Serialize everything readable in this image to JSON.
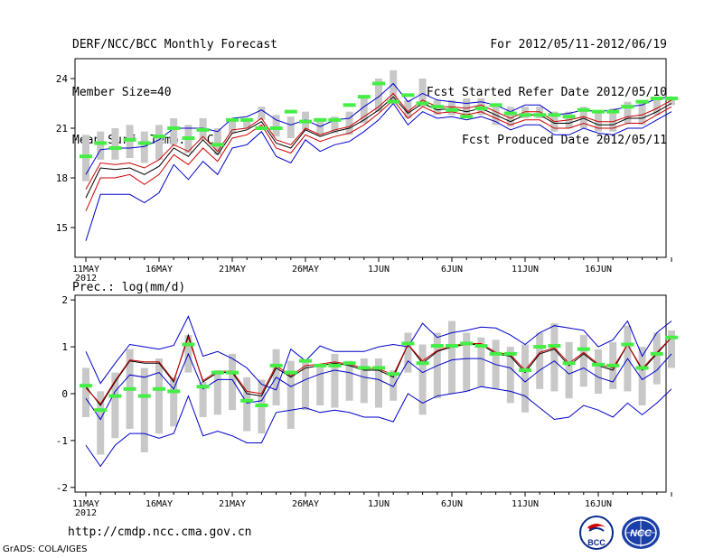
{
  "header": {
    "title": "DERF/NCC/BCC Monthly Forecast",
    "member_size": "Member Size=40",
    "variable1": "Mean Surf. Temp.: °C",
    "period": "For 2012/05/11-2012/06/19",
    "start": "Fcst Started Refer Date 2012/05/10",
    "produced": "Fcst Produced Date 2012/05/11"
  },
  "footer": {
    "url": "http://cmdp.ncc.cma.gov.cn",
    "credit": "GrADS: COLA/IGES",
    "logo1_text": "BCC",
    "logo2_text": "NCC"
  },
  "colors": {
    "median": "#000000",
    "mean": "#cc0000",
    "envelope": "#0000cc",
    "observed": "#44ee44",
    "spread": "#c8c8c8"
  },
  "chart_data": [
    {
      "type": "line",
      "title": "Mean Surf. Temp.: °C",
      "x_ticks": [
        "11MAY",
        "16MAY",
        "21MAY",
        "26MAY",
        "1JUN",
        "6JUN",
        "11JUN",
        "16JUN"
      ],
      "year_label": "2012",
      "ylim": [
        13.2,
        25.2
      ],
      "y_ticks": [
        "15",
        "18",
        "21",
        "24"
      ],
      "y_tick_values": [
        15,
        18,
        21,
        24
      ],
      "series": [
        {
          "name": "max",
          "values": [
            14.2,
            17.0,
            17.0,
            17.0,
            16.5,
            17.1,
            18.8,
            17.9,
            19.0,
            18.2,
            19.8,
            20.0,
            20.8,
            19.3,
            18.9,
            20.3,
            19.6,
            20.0,
            20.2,
            20.8,
            21.5,
            22.5,
            21.2,
            22.0,
            21.6,
            21.7,
            21.5,
            21.7,
            21.4,
            20.9,
            21.2,
            21.2,
            20.6,
            20.6,
            21.0,
            20.7,
            20.6,
            21.0,
            21.0,
            21.5,
            22.0
          ]
        },
        {
          "name": "low",
          "values": [
            16.0,
            18.0,
            18.0,
            18.2,
            17.6,
            18.2,
            19.4,
            18.8,
            19.8,
            19.0,
            20.4,
            20.6,
            21.2,
            19.8,
            19.5,
            20.6,
            20.2,
            20.5,
            20.7,
            21.2,
            21.9,
            22.7,
            21.6,
            22.3,
            21.9,
            22.0,
            21.8,
            22.0,
            21.6,
            21.2,
            21.5,
            21.5,
            21.0,
            21.0,
            21.3,
            21.0,
            21.0,
            21.3,
            21.3,
            21.8,
            22.3
          ]
        },
        {
          "name": "median",
          "values": [
            16.8,
            18.6,
            18.5,
            18.6,
            18.2,
            18.7,
            19.8,
            19.3,
            20.3,
            19.4,
            20.7,
            20.9,
            21.4,
            20.1,
            19.8,
            20.9,
            20.5,
            20.8,
            21.0,
            21.5,
            22.1,
            22.9,
            21.9,
            22.5,
            22.1,
            22.2,
            22.0,
            22.2,
            21.8,
            21.4,
            21.8,
            21.8,
            21.3,
            21.3,
            21.6,
            21.2,
            21.2,
            21.6,
            21.6,
            22.0,
            22.5
          ]
        },
        {
          "name": "mean",
          "values": [
            17.3,
            18.9,
            18.8,
            18.9,
            18.6,
            19.1,
            20.0,
            19.6,
            20.5,
            19.6,
            20.9,
            21.0,
            21.6,
            20.3,
            20.0,
            21.0,
            20.6,
            20.9,
            21.1,
            21.7,
            22.3,
            23.1,
            22.0,
            22.7,
            22.3,
            22.3,
            22.2,
            22.4,
            22.0,
            21.6,
            22.0,
            22.0,
            21.4,
            21.5,
            21.7,
            21.4,
            21.4,
            21.7,
            21.8,
            22.2,
            22.7
          ]
        },
        {
          "name": "min",
          "values": [
            18.2,
            19.7,
            19.8,
            19.8,
            19.9,
            20.3,
            21.0,
            21.0,
            21.0,
            20.8,
            21.6,
            21.7,
            22.1,
            21.5,
            21.2,
            21.5,
            21.1,
            21.5,
            21.6,
            22.3,
            22.9,
            23.7,
            22.6,
            23.1,
            22.7,
            22.6,
            22.5,
            22.6,
            22.4,
            22.0,
            22.4,
            22.4,
            21.8,
            21.9,
            22.1,
            22.0,
            22.1,
            22.3,
            22.4,
            22.8,
            22.9
          ]
        }
      ],
      "observed": [
        19.3,
        20.1,
        19.8,
        20.3,
        20.1,
        20.5,
        21.0,
        20.4,
        20.9,
        20.0,
        21.5,
        21.5,
        21.0,
        21.0,
        22.0,
        21.4,
        21.5,
        21.5,
        22.4,
        22.9,
        23.7,
        22.6,
        23.0,
        22.5,
        22.3,
        22.1,
        21.7,
        22.2,
        22.4,
        21.9,
        21.8,
        21.8,
        21.8,
        21.7,
        22.1,
        22.0,
        22.0,
        22.3,
        22.6,
        22.8,
        22.8
      ],
      "spread": [
        [
          17.8,
          20.6
        ],
        [
          19.1,
          20.8
        ],
        [
          19.1,
          21.0
        ],
        [
          19.2,
          21.2
        ],
        [
          18.9,
          20.8
        ],
        [
          19.1,
          21.2
        ],
        [
          20.0,
          21.6
        ],
        [
          19.5,
          21.2
        ],
        [
          20.3,
          21.6
        ],
        [
          19.4,
          21.0
        ],
        [
          20.7,
          21.5
        ],
        [
          21.0,
          21.5
        ],
        [
          21.5,
          22.3
        ],
        [
          20.5,
          21.8
        ],
        [
          20.4,
          21.7
        ],
        [
          20.9,
          22.0
        ],
        [
          20.6,
          21.6
        ],
        [
          20.7,
          21.7
        ],
        [
          20.6,
          22.0
        ],
        [
          21.3,
          23.0
        ],
        [
          22.0,
          24.0
        ],
        [
          22.7,
          24.5
        ],
        [
          21.6,
          22.7
        ],
        [
          22.3,
          24.0
        ],
        [
          21.8,
          22.7
        ],
        [
          21.8,
          22.7
        ],
        [
          21.7,
          22.8
        ],
        [
          21.8,
          22.8
        ],
        [
          21.2,
          22.3
        ],
        [
          21.1,
          22.3
        ],
        [
          21.6,
          22.3
        ],
        [
          21.6,
          22.3
        ],
        [
          20.8,
          22.0
        ],
        [
          21.0,
          22.0
        ],
        [
          21.0,
          22.3
        ],
        [
          20.8,
          22.1
        ],
        [
          20.8,
          22.2
        ],
        [
          21.3,
          22.6
        ],
        [
          21.2,
          22.6
        ],
        [
          21.8,
          22.8
        ],
        [
          22.4,
          22.8
        ]
      ]
    },
    {
      "type": "line",
      "title": "Prec.: log(mm/d)",
      "x_ticks": [
        "11MAY",
        "16MAY",
        "21MAY",
        "26MAY",
        "1JUN",
        "6JUN",
        "11JUN",
        "16JUN"
      ],
      "year_label": "2012",
      "ylim": [
        -2.1,
        2.1
      ],
      "y_ticks": [
        "-2",
        "-1",
        "0",
        "1",
        "2"
      ],
      "y_tick_values": [
        -2,
        -1,
        0,
        1,
        2
      ],
      "series": [
        {
          "name": "max",
          "values": [
            0.9,
            0.22,
            0.65,
            1.05,
            1.0,
            0.95,
            1.03,
            1.65,
            0.8,
            0.9,
            0.75,
            0.55,
            0.2,
            0.08,
            0.95,
            0.7,
            1.02,
            0.9,
            0.9,
            0.9,
            1.0,
            1.05,
            1.0,
            1.5,
            1.2,
            1.3,
            1.35,
            1.42,
            1.4,
            1.25,
            1.05,
            1.3,
            1.45,
            1.4,
            1.35,
            1.0,
            1.15,
            1.55,
            0.8,
            1.3,
            1.55
          ]
        },
        {
          "name": "median",
          "values": [
            0.15,
            -0.25,
            0.25,
            0.7,
            0.65,
            0.65,
            0.25,
            1.25,
            0.25,
            0.45,
            0.45,
            0.0,
            -0.05,
            0.55,
            0.35,
            0.55,
            0.6,
            0.65,
            0.6,
            0.5,
            0.5,
            0.35,
            1.05,
            0.65,
            0.9,
            1.0,
            1.05,
            1.05,
            0.85,
            0.8,
            0.45,
            0.85,
            0.95,
            0.6,
            0.85,
            0.6,
            0.5,
            1.05,
            0.5,
            0.85,
            1.2
          ]
        },
        {
          "name": "mean",
          "values": [
            0.12,
            -0.22,
            0.28,
            0.72,
            0.68,
            0.68,
            0.28,
            1.2,
            0.28,
            0.48,
            0.48,
            0.05,
            0.0,
            0.6,
            0.38,
            0.6,
            0.63,
            0.68,
            0.62,
            0.55,
            0.53,
            0.4,
            1.05,
            0.7,
            0.92,
            1.02,
            1.07,
            1.07,
            0.88,
            0.83,
            0.5,
            0.88,
            0.98,
            0.65,
            0.88,
            0.63,
            0.55,
            1.05,
            0.53,
            0.88,
            1.2
          ]
        },
        {
          "name": "min",
          "values": [
            -0.1,
            -0.55,
            0.05,
            0.4,
            0.35,
            0.45,
            0.1,
            0.85,
            0.1,
            0.3,
            0.3,
            -0.2,
            -0.15,
            0.35,
            0.15,
            0.3,
            0.42,
            0.5,
            0.45,
            0.35,
            0.3,
            0.15,
            0.7,
            0.45,
            0.6,
            0.72,
            0.75,
            0.75,
            0.62,
            0.55,
            0.25,
            0.5,
            0.7,
            0.42,
            0.55,
            0.35,
            0.25,
            0.75,
            0.3,
            0.5,
            0.85
          ]
        },
        {
          "name": "envelope_low",
          "values": [
            -1.1,
            -1.55,
            -1.1,
            -0.85,
            -0.85,
            -0.95,
            -0.85,
            -0.05,
            -0.9,
            -0.8,
            -0.9,
            -1.05,
            -1.05,
            -0.4,
            -0.35,
            -0.3,
            -0.4,
            -0.35,
            -0.4,
            -0.5,
            -0.5,
            -0.6,
            0.0,
            -0.2,
            -0.05,
            0.0,
            0.05,
            0.15,
            0.1,
            0.05,
            -0.05,
            -0.3,
            -0.55,
            -0.5,
            -0.25,
            -0.35,
            -0.5,
            -0.2,
            -0.45,
            -0.2,
            0.1
          ]
        }
      ],
      "observed": [
        0.17,
        -0.35,
        -0.05,
        0.1,
        -0.05,
        0.1,
        0.05,
        1.05,
        0.15,
        0.45,
        0.45,
        -0.15,
        -0.25,
        0.6,
        0.45,
        0.7,
        0.6,
        0.6,
        0.65,
        0.55,
        0.55,
        0.42,
        1.07,
        0.65,
        1.02,
        1.02,
        1.07,
        1.02,
        0.85,
        0.85,
        0.5,
        1.0,
        1.02,
        0.65,
        0.95,
        0.62,
        0.6,
        1.05,
        0.55,
        0.85,
        1.2
      ],
      "spread": [
        [
          -0.5,
          0.55
        ],
        [
          -1.3,
          0.05
        ],
        [
          -0.95,
          0.45
        ],
        [
          -0.75,
          0.95
        ],
        [
          -1.25,
          0.55
        ],
        [
          -0.85,
          0.75
        ],
        [
          -0.7,
          0.35
        ],
        [
          0.45,
          1.25
        ],
        [
          -0.5,
          0.25
        ],
        [
          -0.45,
          0.5
        ],
        [
          -0.35,
          0.85
        ],
        [
          -0.8,
          0.35
        ],
        [
          -0.85,
          0.3
        ],
        [
          -0.25,
          0.95
        ],
        [
          -0.75,
          0.7
        ],
        [
          -0.35,
          0.7
        ],
        [
          -0.25,
          0.6
        ],
        [
          -0.3,
          0.85
        ],
        [
          -0.15,
          0.7
        ],
        [
          -0.2,
          0.75
        ],
        [
          -0.3,
          0.75
        ],
        [
          -0.15,
          0.5
        ],
        [
          0.45,
          1.3
        ],
        [
          -0.45,
          1.05
        ],
        [
          -0.1,
          1.3
        ],
        [
          0.0,
          1.55
        ],
        [
          0.05,
          1.3
        ],
        [
          0.15,
          1.2
        ],
        [
          0.1,
          1.15
        ],
        [
          -0.2,
          1.0
        ],
        [
          -0.4,
          1.05
        ],
        [
          0.1,
          1.3
        ],
        [
          0.05,
          1.5
        ],
        [
          -0.1,
          1.1
        ],
        [
          0.15,
          1.25
        ],
        [
          0.0,
          0.95
        ],
        [
          0.1,
          1.1
        ],
        [
          0.05,
          1.45
        ],
        [
          -0.25,
          1.0
        ],
        [
          0.2,
          1.3
        ],
        [
          0.55,
          1.35
        ]
      ]
    }
  ]
}
